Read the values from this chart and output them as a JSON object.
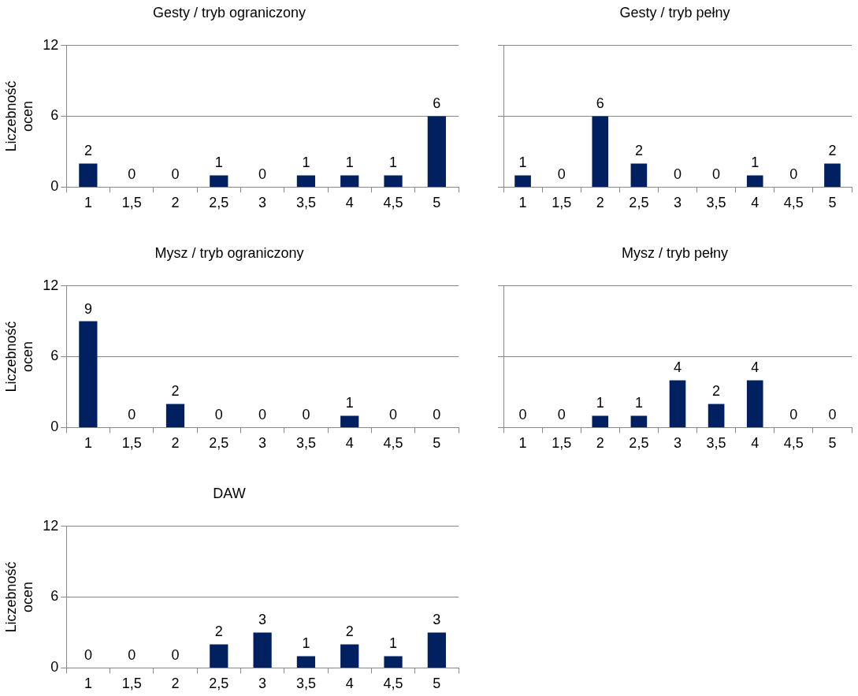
{
  "chart_data": [
    {
      "type": "bar",
      "title": "Gesty / tryb ograniczony",
      "ylabel": "Liczebność ocen",
      "categories": [
        "1",
        "1,5",
        "2",
        "2,5",
        "3",
        "3,5",
        "4",
        "4,5",
        "5"
      ],
      "values": [
        2,
        0,
        0,
        1,
        0,
        1,
        1,
        1,
        6
      ],
      "color": "#002060",
      "ylim": [
        0,
        12
      ],
      "yticks": [
        0,
        6,
        12
      ],
      "grid": "y",
      "data_labels": true
    },
    {
      "type": "bar",
      "title": "Gesty / tryb pełny",
      "categories": [
        "1",
        "1,5",
        "2",
        "2,5",
        "3",
        "3,5",
        "4",
        "4,5",
        "5"
      ],
      "values": [
        1,
        0,
        6,
        2,
        0,
        0,
        1,
        0,
        2
      ],
      "color": "#002060",
      "ylim": [
        0,
        12
      ],
      "yticks": [
        0,
        6,
        12
      ],
      "grid": "y",
      "data_labels": true,
      "tick_labels": "x"
    },
    {
      "type": "bar",
      "title": "Mysz / tryb ograniczony",
      "ylabel": "Liczebność ocen",
      "categories": [
        "1",
        "1,5",
        "2",
        "2,5",
        "3",
        "3,5",
        "4",
        "4,5",
        "5"
      ],
      "values": [
        9,
        0,
        2,
        0,
        0,
        0,
        1,
        0,
        0
      ],
      "color": "#002060",
      "ylim": [
        0,
        12
      ],
      "yticks": [
        0,
        6,
        12
      ],
      "grid": "y",
      "data_labels": true
    },
    {
      "type": "bar",
      "title": "Mysz / tryb pełny",
      "categories": [
        "1",
        "1,5",
        "2",
        "2,5",
        "3",
        "3,5",
        "4",
        "4,5",
        "5"
      ],
      "values": [
        0,
        0,
        1,
        1,
        4,
        2,
        4,
        0,
        0
      ],
      "color": "#002060",
      "ylim": [
        0,
        12
      ],
      "yticks": [
        0,
        6,
        12
      ],
      "grid": "y",
      "data_labels": true,
      "tick_labels": "x"
    },
    {
      "type": "bar",
      "title": "DAW",
      "ylabel": "Liczebność ocen",
      "categories": [
        "1",
        "1,5",
        "2",
        "2,5",
        "3",
        "3,5",
        "4",
        "4,5",
        "5"
      ],
      "values": [
        0,
        0,
        0,
        2,
        3,
        1,
        2,
        1,
        3
      ],
      "color": "#002060",
      "ylim": [
        0,
        12
      ],
      "yticks": [
        0,
        6,
        12
      ],
      "grid": "y",
      "data_labels": true
    }
  ]
}
